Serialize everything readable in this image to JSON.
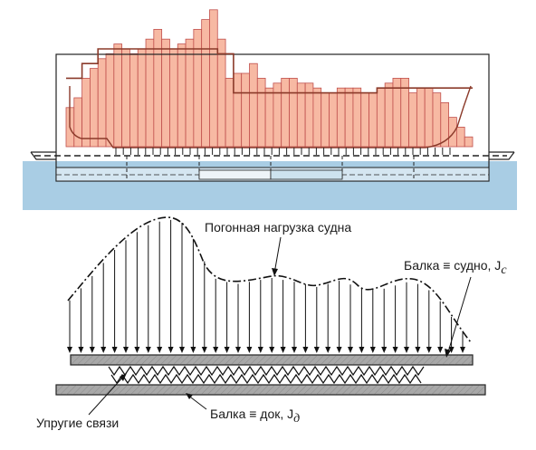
{
  "labels": {
    "linear_load": "Погонная нагрузка судна",
    "beam_ship": "Балка ≡ судно, J",
    "beam_ship_sub": "с",
    "beam_dock": "Балка ≡ док, J",
    "beam_dock_sub": "д",
    "elastic_links": "Упругие связи"
  },
  "colors": {
    "water": "#a9cde4",
    "load_bar_fill": "#f7b9a3",
    "load_bar_stroke": "#c0504d",
    "hull_line": "#8b3a2a",
    "outline": "#222222",
    "beam_fill": "#a8a8a8",
    "pontoon_fill": "#d5e6f1"
  },
  "load_bars": [
    8,
    10,
    14,
    16,
    18,
    19,
    21,
    20,
    19,
    20,
    22,
    24,
    22,
    20,
    21,
    22,
    24,
    26,
    28,
    22,
    14,
    15,
    15,
    17,
    14,
    12,
    13,
    14,
    14,
    13,
    13,
    12,
    11,
    11,
    12,
    12,
    12,
    11,
    11,
    12,
    13,
    14,
    14,
    11,
    12,
    12,
    11,
    9,
    6,
    4,
    2
  ],
  "stepped_load": [
    14,
    14,
    17,
    17,
    20,
    20,
    20,
    20,
    20,
    20,
    20,
    20,
    20,
    20,
    20,
    20,
    20,
    20,
    20,
    19,
    19,
    11,
    11,
    11,
    11,
    11,
    11,
    11,
    11,
    11,
    11,
    11,
    11,
    11,
    11,
    11,
    11,
    11,
    11,
    12,
    12,
    12,
    12,
    12,
    12,
    12,
    12,
    12,
    12,
    12,
    12
  ]
}
